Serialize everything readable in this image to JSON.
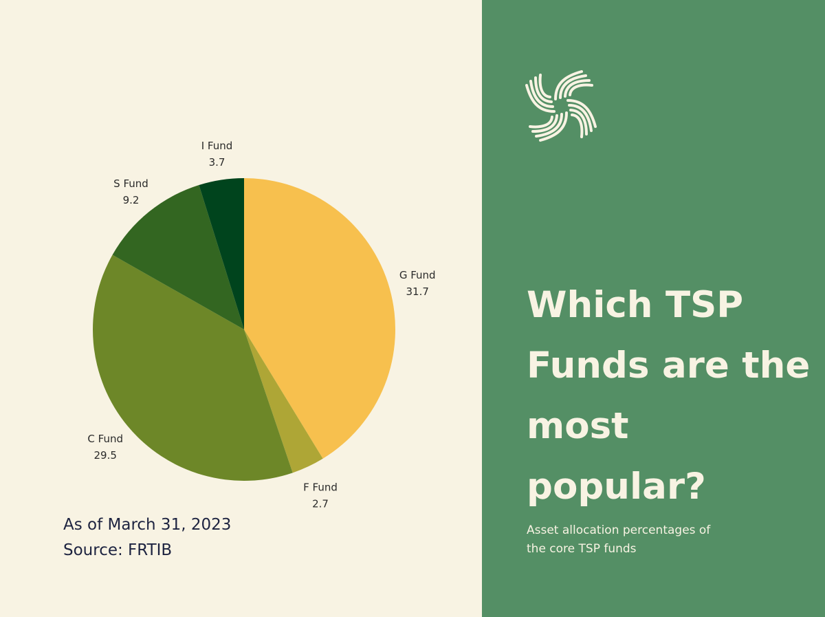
{
  "chart_data": {
    "type": "pie",
    "title": "",
    "slices": [
      {
        "label": "G Fund",
        "value": 31.7,
        "color": "#f7c04e"
      },
      {
        "label": "F Fund",
        "value": 2.7,
        "color": "#aea636"
      },
      {
        "label": "C Fund",
        "value": 29.5,
        "color": "#6d8728"
      },
      {
        "label": "S Fund",
        "value": 9.2,
        "color": "#336621"
      },
      {
        "label": "I Fund",
        "value": 3.7,
        "color": "#00441d"
      }
    ]
  },
  "footnote": {
    "date": "As of March 31, 2023",
    "source": "Source: FRTIB"
  },
  "panel": {
    "headline_lines": [
      "Which TSP",
      "Funds are the",
      "most popular?"
    ],
    "subtitle_lines": [
      "Asset allocation percentages of",
      "the core TSP funds"
    ],
    "logo_icon": "leaf-knot-logo-icon",
    "background_color": "#548f65",
    "text_color": "#f8f3e3"
  }
}
